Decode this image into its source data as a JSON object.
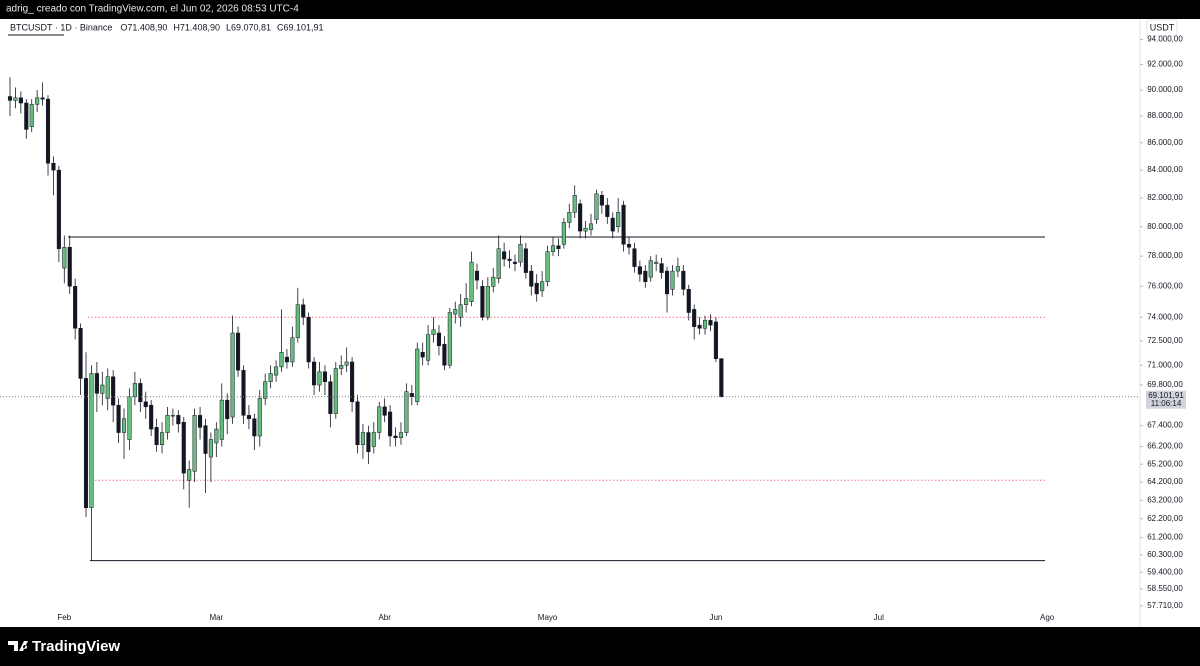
{
  "header": "adrig_ creado con TradingView.com, el Jun 02, 2026 08:53 UTC-4",
  "brand": "TradingView",
  "chart_data": {
    "type": "candlestick",
    "symbol": "BTCUSDT · 1D · Binance",
    "ohlc": [
      "O71.408,90",
      "H71.408,90",
      "L69.070,81",
      "C69.101,91"
    ],
    "currency": "USDT",
    "price_label": "69.101,91",
    "countdown": "11:06:14",
    "months": [
      "Feb",
      "Mar",
      "Abr",
      "Mayo",
      "Jun",
      "Jul",
      "Ago"
    ],
    "log_scale": true,
    "grid": false,
    "up_color": "#66bb7e",
    "down_color": "#131722",
    "ylim": [
      57500,
      95600
    ],
    "yticks": [
      {
        "value": 94000,
        "label": "94.000,00"
      },
      {
        "value": 92000,
        "label": "92.000,00"
      },
      {
        "value": 90000,
        "label": "90.000,00"
      },
      {
        "value": 88000,
        "label": "88.000,00"
      },
      {
        "value": 86000,
        "label": "86.000,00"
      },
      {
        "value": 84000,
        "label": "84.000,00"
      },
      {
        "value": 82000,
        "label": "82.000,00"
      },
      {
        "value": 80000,
        "label": "80.000,00"
      },
      {
        "value": 78000,
        "label": "78.000,00"
      },
      {
        "value": 76000,
        "label": "76.000,00"
      },
      {
        "value": 74000,
        "label": "74.000,00"
      },
      {
        "value": 72500,
        "label": "72.500,00"
      },
      {
        "value": 71000,
        "label": "71.000,00"
      },
      {
        "value": 69800,
        "label": "69.800,00"
      },
      {
        "value": 67400,
        "label": "67.400,00"
      },
      {
        "value": 66200,
        "label": "66.200,00"
      },
      {
        "value": 65200,
        "label": "65.200,00"
      },
      {
        "value": 64200,
        "label": "64.200,00"
      },
      {
        "value": 63200,
        "label": "63.200,00"
      },
      {
        "value": 62200,
        "label": "62.200,00"
      },
      {
        "value": 61200,
        "label": "61.200,00"
      },
      {
        "value": 60300,
        "label": "60.300,00"
      },
      {
        "value": 59400,
        "label": "59.400,00"
      },
      {
        "value": 58550,
        "label": "58.550,00"
      },
      {
        "value": 57710,
        "label": "57.710,00"
      }
    ],
    "levels": [
      {
        "value": 79300,
        "color": "#131722",
        "style": "solid"
      },
      {
        "value": 74000,
        "color": "#f23645",
        "style": "dotted"
      },
      {
        "value": 64300,
        "color": "#f23645",
        "style": "dotted"
      },
      {
        "value": 60000,
        "color": "#131722",
        "style": "solid"
      }
    ],
    "open": [
      89500,
      89200,
      89400,
      89000,
      87200,
      88900,
      89400,
      89300,
      84500,
      84000,
      77200,
      78600,
      76000,
      73300,
      70200,
      62800,
      70500,
      69300,
      69000,
      70300,
      68600,
      67000,
      66600,
      69100,
      69900,
      68800,
      68600,
      67300,
      66300,
      67000,
      68000,
      68000,
      67600,
      64300,
      64800,
      68000,
      67400,
      65600,
      66400,
      66600,
      68900,
      67900,
      73000,
      70700,
      68000,
      67800,
      66800,
      69000,
      70000,
      70400,
      70900,
      71500,
      71200,
      72700,
      74800,
      74000,
      71200,
      69800,
      70600,
      70000,
      68100,
      70800,
      71000,
      71200,
      68800,
      66300,
      67000,
      66200,
      67000,
      68500,
      68200,
      66800,
      66700,
      67000,
      69300,
      68800,
      71800,
      71300,
      72900,
      73000,
      72300,
      71000,
      74200,
      74000,
      74800,
      75000,
      77000,
      76000,
      74000,
      76000,
      76500,
      78300,
      77800,
      77600,
      77600,
      78500,
      77000,
      76200,
      75700,
      76300,
      78300,
      78700,
      78800,
      80300,
      81000,
      81600,
      79700,
      79800,
      80500,
      82200,
      81500,
      80600,
      80000,
      81500,
      78800,
      78500,
      77300,
      77000,
      76600,
      77500,
      77500,
      77000,
      75800,
      77000,
      77000,
      75800,
      74500,
      73500,
      73300,
      73800,
      73700,
      71408.9
    ],
    "high": [
      91000,
      90200,
      89900,
      89300,
      89300,
      90000,
      90600,
      89600,
      85000,
      84300,
      79400,
      79400,
      76500,
      73600,
      71800,
      71000,
      71200,
      70600,
      70800,
      70700,
      69000,
      68400,
      69600,
      70600,
      70200,
      69400,
      68900,
      67800,
      67600,
      68500,
      68400,
      68300,
      67900,
      65400,
      68400,
      68500,
      67800,
      67000,
      67600,
      69900,
      69300,
      74100,
      73400,
      71000,
      68600,
      68100,
      69500,
      70500,
      71000,
      71300,
      74500,
      72000,
      73400,
      75900,
      75200,
      74300,
      71500,
      71200,
      71000,
      70400,
      71200,
      71600,
      72100,
      71500,
      69200,
      67500,
      67400,
      67600,
      68800,
      69000,
      68600,
      67300,
      67600,
      69900,
      69800,
      72400,
      72400,
      73500,
      74000,
      73500,
      72800,
      74600,
      75000,
      75500,
      76200,
      78300,
      77500,
      76400,
      76600,
      77200,
      79400,
      78900,
      78400,
      78100,
      79400,
      78900,
      77400,
      76800,
      77000,
      78700,
      79300,
      79200,
      80600,
      81600,
      82900,
      81900,
      80400,
      80900,
      82600,
      82500,
      82000,
      81000,
      82000,
      81800,
      79300,
      78900,
      77700,
      77400,
      78000,
      78100,
      77900,
      77300,
      77400,
      77900,
      77400,
      76100,
      74800,
      74000,
      74100,
      74200,
      74000,
      71408.9
    ],
    "low": [
      88000,
      88600,
      88200,
      86300,
      86800,
      88300,
      88800,
      83600,
      82200,
      77600,
      76200,
      75500,
      72600,
      69200,
      62300,
      60000,
      68200,
      68600,
      68300,
      67600,
      66400,
      65500,
      66000,
      68600,
      68200,
      67800,
      66800,
      65900,
      65800,
      66600,
      67400,
      67000,
      63800,
      62800,
      64200,
      66600,
      63600,
      64200,
      65600,
      66200,
      66900,
      67500,
      70300,
      67500,
      67200,
      66000,
      66200,
      68600,
      69600,
      70000,
      70600,
      70800,
      70900,
      72400,
      73500,
      70800,
      69200,
      69400,
      69200,
      67300,
      67800,
      70400,
      70600,
      68200,
      65800,
      65500,
      65200,
      65800,
      66600,
      67600,
      66200,
      66200,
      66300,
      66800,
      68600,
      68600,
      71000,
      71000,
      72400,
      71600,
      70700,
      70800,
      73600,
      73400,
      74300,
      74700,
      75800,
      73800,
      73800,
      75600,
      76200,
      77300,
      77200,
      77000,
      77300,
      76500,
      75400,
      75000,
      75300,
      76000,
      78000,
      78000,
      78500,
      79900,
      80600,
      79200,
      79200,
      79400,
      80200,
      80900,
      80200,
      79200,
      79600,
      78300,
      78100,
      76900,
      76300,
      75900,
      76300,
      77000,
      76500,
      74300,
      75400,
      76600,
      75400,
      73800,
      72600,
      72900,
      72900,
      73100,
      71200,
      69070.81
    ],
    "close": [
      89200,
      89400,
      89000,
      87000,
      88900,
      89400,
      89300,
      84500,
      84000,
      78500,
      78600,
      76000,
      73300,
      70200,
      62800,
      70500,
      69300,
      69800,
      70300,
      68600,
      67000,
      67800,
      69100,
      69900,
      68800,
      68500,
      67200,
      66300,
      67000,
      68000,
      68000,
      67500,
      64700,
      64900,
      68000,
      67300,
      65800,
      66600,
      67200,
      68900,
      67800,
      73000,
      70700,
      68000,
      67800,
      66800,
      69000,
      70000,
      70500,
      70900,
      71800,
      71200,
      72700,
      74800,
      74000,
      71200,
      69800,
      70600,
      70000,
      68100,
      70800,
      71000,
      71200,
      68800,
      66300,
      67000,
      65900,
      67000,
      68500,
      68000,
      66800,
      66700,
      67000,
      69400,
      69100,
      72000,
      71500,
      72900,
      73200,
      72200,
      71000,
      74300,
      74500,
      74800,
      75200,
      77600,
      76400,
      74000,
      76000,
      76600,
      78500,
      77800,
      77700,
      77500,
      78800,
      76900,
      76000,
      75500,
      76300,
      78300,
      78700,
      78500,
      80300,
      81000,
      82200,
      79700,
      79900,
      80200,
      82300,
      81500,
      80700,
      79700,
      81000,
      78800,
      78600,
      77300,
      76800,
      76300,
      77700,
      77600,
      76900,
      75500,
      77000,
      77300,
      75800,
      74300,
      73400,
      73300,
      73800,
      73500,
      71400,
      69101.91
    ]
  }
}
